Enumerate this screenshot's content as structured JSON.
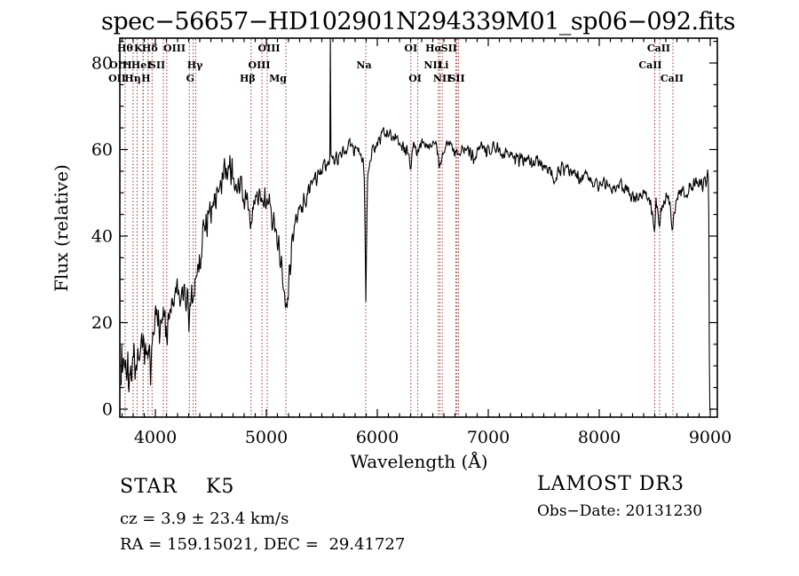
{
  "title": "spec−56657−HD102901N294339M01_sp06−092.fits",
  "footer": {
    "class": "STAR    K5",
    "cz": "cz = 3.9 ± 23.4 km/s",
    "radec": "RA = 159.15021, DEC =  29.41727",
    "survey": "LAMOST DR3",
    "obsdate": "Obs−Date: 20131230"
  },
  "chart_data": {
    "type": "line",
    "title": "spec−56657−HD102901N294339M01_sp06−092.fits",
    "xlabel": "Wavelength (Å)",
    "ylabel": "Flux (relative)",
    "xlim": [
      3680,
      9064
    ],
    "ylim": [
      -1.85,
      85.74
    ],
    "xticks": [
      4000,
      5000,
      6000,
      7000,
      8000,
      9000
    ],
    "yticks": [
      0,
      20,
      40,
      60,
      80
    ],
    "x_minor_step": 100,
    "y_minor_step": 5,
    "grid": false,
    "legend": false,
    "colors": {
      "spectrum": "#000000",
      "line_marker": "#9e2f2f",
      "frame": "#000000"
    },
    "spectral_lines": [
      {
        "label": "Hθ",
        "wl": 3799,
        "row": 0,
        "dx": -9
      },
      {
        "label": "K",
        "wl": 3934,
        "row": 0,
        "dx": -11
      },
      {
        "label": "Hδ",
        "wl": 4102,
        "row": 0,
        "dx": -19
      },
      {
        "label": "OIII",
        "wl": 4364,
        "row": 0,
        "dx": -24
      },
      {
        "label": "OIII",
        "wl": 5008,
        "row": 0,
        "dx": 2
      },
      {
        "label": "OI",
        "wl": 6302,
        "row": 0,
        "dx": 0
      },
      {
        "label": "Hα",
        "wl": 6564,
        "row": 0,
        "dx": -7
      },
      {
        "label": "SII",
        "wl": 6718,
        "row": 0,
        "dx": -9
      },
      {
        "label": "CaII",
        "wl": 8544,
        "row": 0,
        "dx": -1
      },
      {
        "label": "OII",
        "wl": 3728,
        "row": 1,
        "dx": -8
      },
      {
        "label": "H",
        "wl": 3970,
        "row": 1,
        "dx": -28
      },
      {
        "label": "HeI",
        "wl": 3889,
        "row": 1,
        "dx": -2
      },
      {
        "label": "SII",
        "wl": 4072,
        "row": 1,
        "dx": -7
      },
      {
        "label": "Hγ",
        "wl": 4341,
        "row": 1,
        "dx": 2
      },
      {
        "label": "OIII",
        "wl": 4960,
        "row": 1,
        "dx": -3
      },
      {
        "label": "Na",
        "wl": 5896,
        "row": 1,
        "dx": -2
      },
      {
        "label": "NII",
        "wl": 6549,
        "row": 1,
        "dx": -6
      },
      {
        "label": "Li",
        "wl": 6708,
        "row": 1,
        "dx": -14
      },
      {
        "label": "CaII",
        "wl": 8500,
        "row": 1,
        "dx": -5
      },
      {
        "label": "OII",
        "wl": 3728,
        "row": 2,
        "dx": -9
      },
      {
        "label": "Hη",
        "wl": 3836,
        "row": 2,
        "dx": -5
      },
      {
        "label": "H",
        "wl": 3890,
        "row": 2,
        "dx": 3
      },
      {
        "label": "G",
        "wl": 4306,
        "row": 2,
        "dx": 1
      },
      {
        "label": "Hβ",
        "wl": 4862,
        "row": 2,
        "dx": -4
      },
      {
        "label": "Mg",
        "wl": 5176,
        "row": 2,
        "dx": -9
      },
      {
        "label": "OI",
        "wl": 6365,
        "row": 2,
        "dx": -3
      },
      {
        "label": "NII",
        "wl": 6585,
        "row": 2,
        "dx": 0
      },
      {
        "label": "SII",
        "wl": 6732,
        "row": 2,
        "dx": -2
      },
      {
        "label": "CaII",
        "wl": 8664,
        "row": 2,
        "dx": -1
      }
    ],
    "spectrum": {
      "lambda_start": 3692,
      "lambda_end": 9030,
      "step": 5,
      "seed": 1337,
      "anchors": [
        [
          3692,
          8
        ],
        [
          3697,
          14
        ],
        [
          3703,
          6
        ],
        [
          3710,
          12
        ],
        [
          3720,
          9
        ],
        [
          3730,
          13
        ],
        [
          3740,
          10
        ],
        [
          3750,
          13
        ],
        [
          3760,
          11
        ],
        [
          3775,
          13
        ],
        [
          3790,
          11
        ],
        [
          3805,
          12
        ],
        [
          3820,
          14
        ],
        [
          3836,
          12
        ],
        [
          3850,
          15
        ],
        [
          3865,
          13
        ],
        [
          3880,
          14
        ],
        [
          3895,
          13
        ],
        [
          3910,
          16
        ],
        [
          3925,
          14
        ],
        [
          3934,
          11
        ],
        [
          3945,
          16
        ],
        [
          3958,
          14
        ],
        [
          3970,
          13
        ],
        [
          3985,
          18
        ],
        [
          4000,
          20
        ],
        [
          4020,
          23
        ],
        [
          4040,
          24
        ],
        [
          4060,
          23
        ],
        [
          4080,
          22
        ],
        [
          4100,
          19
        ],
        [
          4120,
          24
        ],
        [
          4140,
          26
        ],
        [
          4160,
          25
        ],
        [
          4180,
          26
        ],
        [
          4200,
          27
        ],
        [
          4220,
          26
        ],
        [
          4240,
          25
        ],
        [
          4260,
          27
        ],
        [
          4280,
          26
        ],
        [
          4300,
          23
        ],
        [
          4315,
          25
        ],
        [
          4330,
          27
        ],
        [
          4341,
          26
        ],
        [
          4355,
          29
        ],
        [
          4370,
          32
        ],
        [
          4390,
          35
        ],
        [
          4410,
          38
        ],
        [
          4430,
          41
        ],
        [
          4450,
          43
        ],
        [
          4470,
          45
        ],
        [
          4490,
          46
        ],
        [
          4510,
          47
        ],
        [
          4530,
          49
        ],
        [
          4550,
          50
        ],
        [
          4570,
          52
        ],
        [
          4590,
          54
        ],
        [
          4610,
          55
        ],
        [
          4630,
          56
        ],
        [
          4650,
          55
        ],
        [
          4670,
          56
        ],
        [
          4690,
          55
        ],
        [
          4710,
          54
        ],
        [
          4730,
          53
        ],
        [
          4750,
          53
        ],
        [
          4770,
          52
        ],
        [
          4790,
          50
        ],
        [
          4810,
          49
        ],
        [
          4830,
          47
        ],
        [
          4850,
          45
        ],
        [
          4862,
          43
        ],
        [
          4875,
          46
        ],
        [
          4890,
          48
        ],
        [
          4910,
          49
        ],
        [
          4930,
          49
        ],
        [
          4950,
          50
        ],
        [
          4970,
          49
        ],
        [
          4990,
          50
        ],
        [
          5010,
          50
        ],
        [
          5030,
          48
        ],
        [
          5050,
          46
        ],
        [
          5070,
          44
        ],
        [
          5090,
          42
        ],
        [
          5110,
          39
        ],
        [
          5130,
          35
        ],
        [
          5150,
          31
        ],
        [
          5165,
          27
        ],
        [
          5176,
          24
        ],
        [
          5188,
          27
        ],
        [
          5200,
          31
        ],
        [
          5220,
          36
        ],
        [
          5240,
          39
        ],
        [
          5260,
          42
        ],
        [
          5280,
          44
        ],
        [
          5300,
          46
        ],
        [
          5330,
          48
        ],
        [
          5360,
          50
        ],
        [
          5390,
          51
        ],
        [
          5420,
          52
        ],
        [
          5450,
          53
        ],
        [
          5480,
          54
        ],
        [
          5510,
          55
        ],
        [
          5540,
          56
        ],
        [
          5565,
          57
        ],
        [
          5572,
          59
        ],
        [
          5577,
          93
        ],
        [
          5582,
          59
        ],
        [
          5590,
          57
        ],
        [
          5610,
          57
        ],
        [
          5640,
          58
        ],
        [
          5670,
          59
        ],
        [
          5700,
          59
        ],
        [
          5730,
          60
        ],
        [
          5760,
          61
        ],
        [
          5790,
          61
        ],
        [
          5820,
          60
        ],
        [
          5850,
          59
        ],
        [
          5870,
          57
        ],
        [
          5884,
          53
        ],
        [
          5891,
          38
        ],
        [
          5897,
          26
        ],
        [
          5903,
          40
        ],
        [
          5912,
          53
        ],
        [
          5925,
          57
        ],
        [
          5950,
          60
        ],
        [
          5980,
          61
        ],
        [
          6010,
          62
        ],
        [
          6040,
          63
        ],
        [
          6070,
          64
        ],
        [
          6100,
          65
        ],
        [
          6130,
          64
        ],
        [
          6160,
          63
        ],
        [
          6190,
          62
        ],
        [
          6220,
          61
        ],
        [
          6250,
          60
        ],
        [
          6280,
          59
        ],
        [
          6302,
          57
        ],
        [
          6320,
          60
        ],
        [
          6340,
          61
        ],
        [
          6365,
          59
        ],
        [
          6385,
          61
        ],
        [
          6410,
          62
        ],
        [
          6440,
          62
        ],
        [
          6470,
          61
        ],
        [
          6500,
          61
        ],
        [
          6530,
          60
        ],
        [
          6549,
          59
        ],
        [
          6564,
          56
        ],
        [
          6580,
          59
        ],
        [
          6600,
          60
        ],
        [
          6630,
          61
        ],
        [
          6660,
          61
        ],
        [
          6690,
          60
        ],
        [
          6710,
          59
        ],
        [
          6732,
          59
        ],
        [
          6760,
          60
        ],
        [
          6790,
          61
        ],
        [
          6820,
          60
        ],
        [
          6850,
          59
        ],
        [
          6880,
          59
        ],
        [
          6910,
          60
        ],
        [
          6940,
          61
        ],
        [
          6970,
          60
        ],
        [
          7000,
          60
        ],
        [
          7040,
          60
        ],
        [
          7080,
          61
        ],
        [
          7120,
          60
        ],
        [
          7160,
          59
        ],
        [
          7200,
          59
        ],
        [
          7240,
          59
        ],
        [
          7280,
          58
        ],
        [
          7320,
          58
        ],
        [
          7360,
          58
        ],
        [
          7400,
          57
        ],
        [
          7440,
          58
        ],
        [
          7480,
          57
        ],
        [
          7520,
          56
        ],
        [
          7560,
          55
        ],
        [
          7590,
          53
        ],
        [
          7605,
          54
        ],
        [
          7640,
          55
        ],
        [
          7680,
          56
        ],
        [
          7720,
          55
        ],
        [
          7760,
          54
        ],
        [
          7800,
          54
        ],
        [
          7840,
          53
        ],
        [
          7880,
          54
        ],
        [
          7920,
          53
        ],
        [
          7960,
          52
        ],
        [
          8000,
          52
        ],
        [
          8040,
          53
        ],
        [
          8080,
          52
        ],
        [
          8120,
          51
        ],
        [
          8160,
          52
        ],
        [
          8200,
          52
        ],
        [
          8240,
          51
        ],
        [
          8280,
          50
        ],
        [
          8320,
          49
        ],
        [
          8360,
          50
        ],
        [
          8400,
          50
        ],
        [
          8430,
          49
        ],
        [
          8460,
          48
        ],
        [
          8480,
          46
        ],
        [
          8500,
          42
        ],
        [
          8512,
          48
        ],
        [
          8528,
          46
        ],
        [
          8544,
          42
        ],
        [
          8558,
          47
        ],
        [
          8580,
          49
        ],
        [
          8610,
          50
        ],
        [
          8635,
          47
        ],
        [
          8664,
          41
        ],
        [
          8680,
          47
        ],
        [
          8700,
          49
        ],
        [
          8730,
          50
        ],
        [
          8760,
          51
        ],
        [
          8790,
          50
        ],
        [
          8820,
          51
        ],
        [
          8850,
          52
        ],
        [
          8880,
          52
        ],
        [
          8910,
          53
        ],
        [
          8930,
          51
        ],
        [
          8950,
          54
        ],
        [
          8965,
          52
        ],
        [
          8978,
          55
        ],
        [
          8986,
          50
        ],
        [
          8990,
          25
        ],
        [
          8994,
          0
        ],
        [
          9030,
          0
        ]
      ],
      "noise_amp_anchors": [
        [
          3692,
          6.5
        ],
        [
          3900,
          5
        ],
        [
          4100,
          5
        ],
        [
          4400,
          4.5
        ],
        [
          4700,
          3.5
        ],
        [
          5000,
          3.3
        ],
        [
          5200,
          3
        ],
        [
          5450,
          2.6
        ],
        [
          5560,
          2.2
        ],
        [
          5900,
          2
        ],
        [
          6200,
          2
        ],
        [
          6600,
          1.8
        ],
        [
          7000,
          1.8
        ],
        [
          7600,
          1.8
        ],
        [
          8200,
          2
        ],
        [
          8600,
          2.2
        ],
        [
          8940,
          2.3
        ],
        [
          8988,
          1
        ],
        [
          8996,
          0.15
        ],
        [
          9030,
          0.1
        ]
      ]
    }
  }
}
